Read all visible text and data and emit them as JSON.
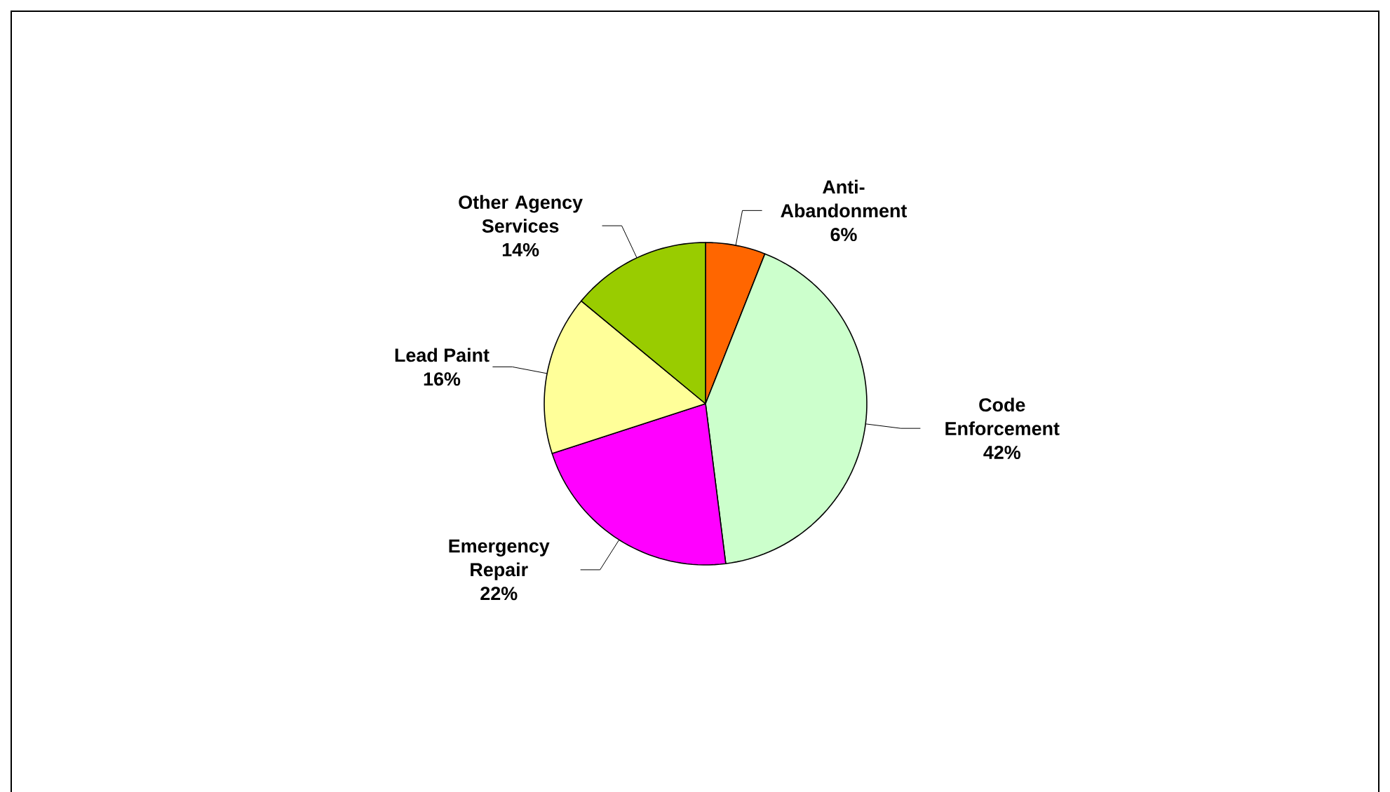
{
  "chart_data": {
    "type": "pie",
    "categories": [
      "Anti-Abandonment",
      "Code Enforcement",
      "Emergency Repair",
      "Lead Paint",
      "Other Agency Services"
    ],
    "values": [
      6,
      42,
      22,
      16,
      14
    ],
    "value_labels": [
      "6%",
      "42%",
      "22%",
      "16%",
      "14%"
    ],
    "colors": [
      "#ff6600",
      "#ccffcc",
      "#ff00ff",
      "#ffff99",
      "#99cc00"
    ]
  }
}
